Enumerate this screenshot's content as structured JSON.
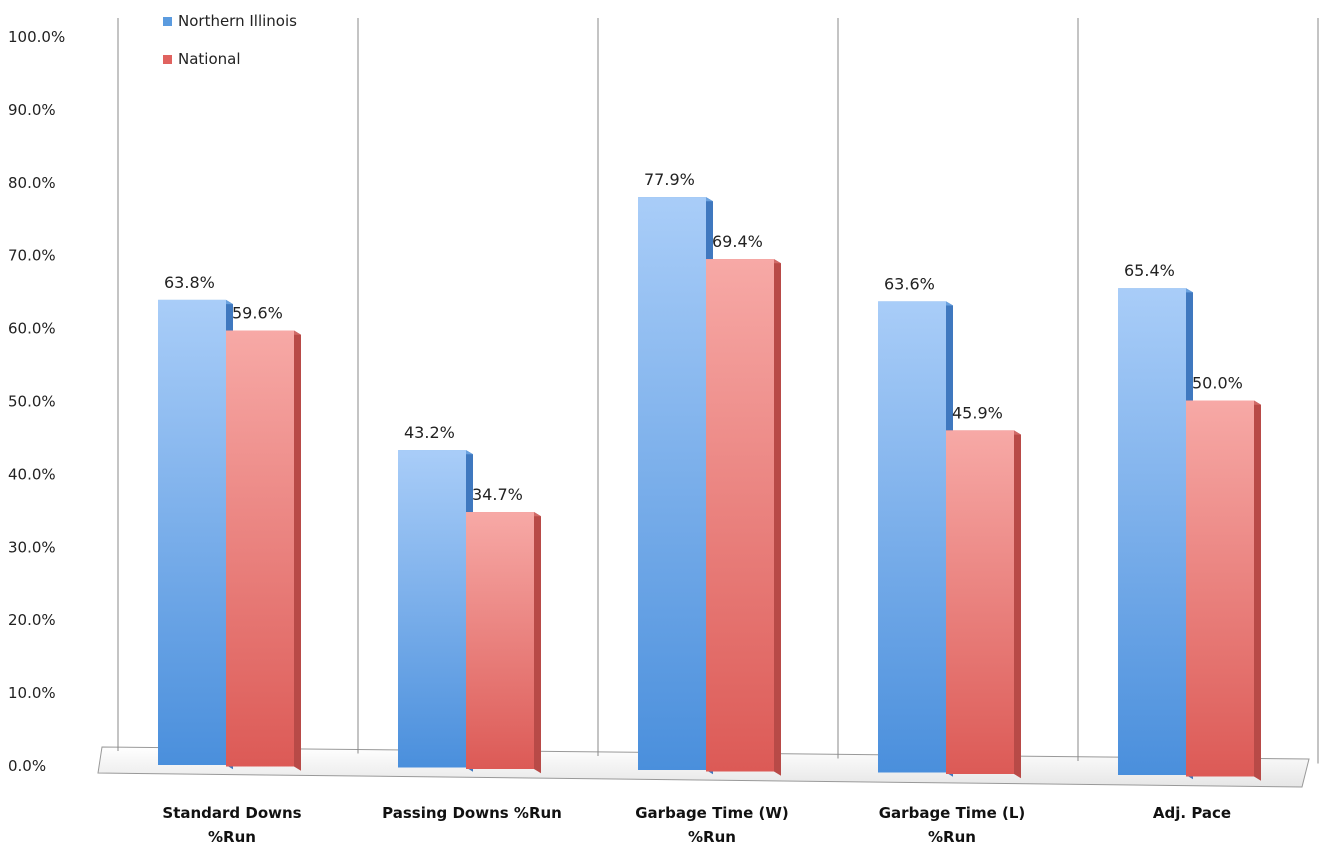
{
  "chart_data": {
    "type": "bar",
    "title": "",
    "xlabel": "",
    "ylabel": "",
    "ylim": [
      0,
      100
    ],
    "y_ticks": [
      "0.0%",
      "10.0%",
      "20.0%",
      "30.0%",
      "40.0%",
      "50.0%",
      "60.0%",
      "70.0%",
      "80.0%",
      "90.0%",
      "100.0%"
    ],
    "categories": [
      [
        "Standard Downs",
        "%Run"
      ],
      [
        "Passing Downs %Run"
      ],
      [
        "Garbage Time (W)",
        "%Run"
      ],
      [
        "Garbage Time (L)",
        "%Run"
      ],
      [
        "Adj. Pace"
      ]
    ],
    "series": [
      {
        "name": "Northern Illinois",
        "values": [
          63.8,
          43.2,
          77.9,
          63.6,
          65.4
        ],
        "labels": [
          "63.8%",
          "43.2%",
          "77.9%",
          "63.6%",
          "65.4%"
        ],
        "color": "#5b9bdf"
      },
      {
        "name": "National",
        "values": [
          59.6,
          34.7,
          69.4,
          45.9,
          50.0
        ],
        "labels": [
          "59.6%",
          "34.7%",
          "69.4%",
          "45.9%",
          "50.0%"
        ],
        "color": "#e0625f"
      }
    ],
    "legend_position": "top-left",
    "grid": false,
    "style": "3d-bar"
  }
}
